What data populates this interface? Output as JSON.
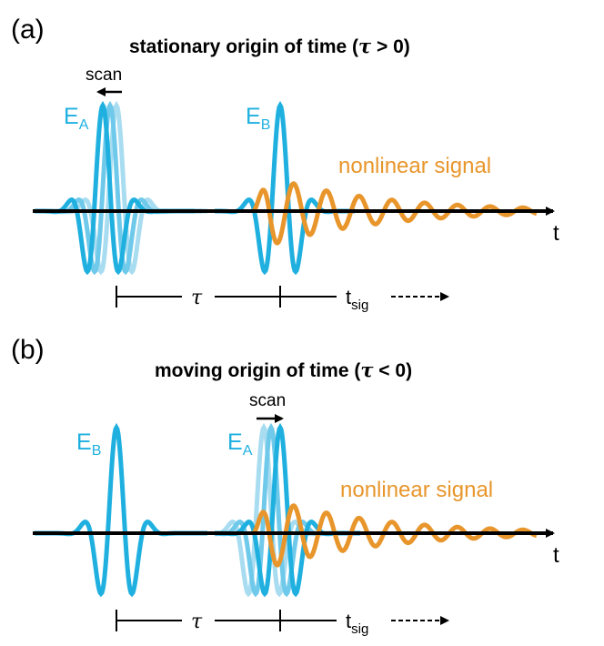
{
  "panels": [
    {
      "id": "a",
      "label": "(a)",
      "title_prefix": "stationary origin of time (",
      "title_tau": "τ",
      "title_suffix": " > 0)",
      "scan_label": "scan",
      "field_first": {
        "main": "E",
        "sub": "A"
      },
      "field_second": {
        "main": "E",
        "sub": "B"
      },
      "signal_label": "nonlinear signal",
      "axis_label": "t",
      "tau_label": "τ",
      "tsig_main": "t",
      "tsig_sub": "sig",
      "scan_direction": "left"
    },
    {
      "id": "b",
      "label": "(b)",
      "title_prefix": "moving origin of time (",
      "title_tau": "τ",
      "title_suffix": " < 0)",
      "scan_label": "scan",
      "field_first": {
        "main": "E",
        "sub": "B"
      },
      "field_second": {
        "main": "E",
        "sub": "A"
      },
      "signal_label": "nonlinear signal",
      "axis_label": "t",
      "tau_label": "τ",
      "tsig_main": "t",
      "tsig_sub": "sig",
      "scan_direction": "right"
    }
  ],
  "colors": {
    "pulse": "#1fb0e0",
    "pulse_faint": "#a8dcf0",
    "signal": "#e8962c",
    "axis": "#000000"
  }
}
